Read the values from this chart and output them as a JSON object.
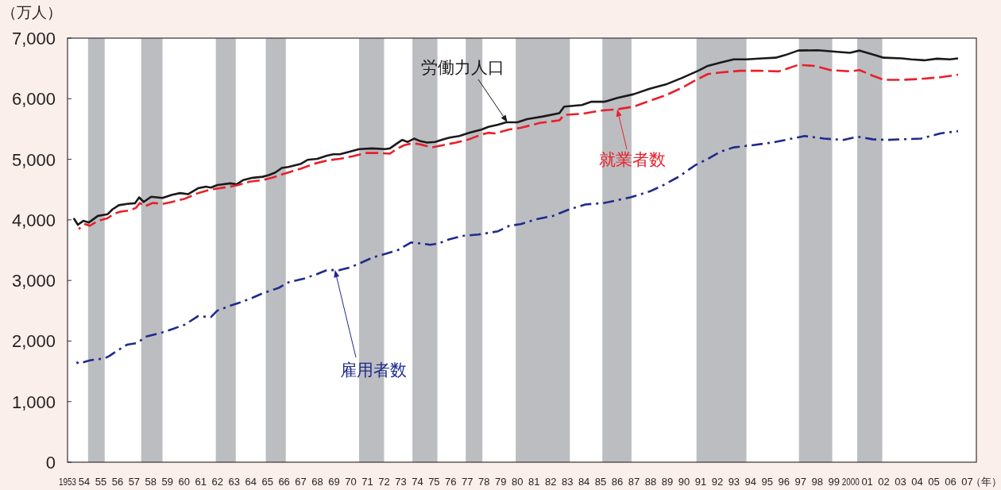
{
  "chart_data": {
    "type": "line",
    "ylabel": "（万人）",
    "xlabel": "（年）",
    "xlim": [
      1953.0,
      2007.55
    ],
    "xticks": [
      1953,
      {
        "value": 1954,
        "label": "54"
      },
      {
        "value": 1955,
        "label": "55"
      },
      {
        "value": 1956,
        "label": "56"
      },
      {
        "value": 1957,
        "label": "57"
      },
      {
        "value": 1958,
        "label": "58"
      },
      {
        "value": 1959,
        "label": "59"
      },
      {
        "value": 1960,
        "label": "60"
      },
      {
        "value": 1961,
        "label": "61"
      },
      {
        "value": 1962,
        "label": "62"
      },
      {
        "value": 1963,
        "label": "63"
      },
      {
        "value": 1964,
        "label": "64"
      },
      {
        "value": 1965,
        "label": "65"
      },
      {
        "value": 1966,
        "label": "66"
      },
      {
        "value": 1967,
        "label": "67"
      },
      {
        "value": 1968,
        "label": "68"
      },
      {
        "value": 1969,
        "label": "69"
      },
      {
        "value": 1970,
        "label": "70"
      },
      {
        "value": 1971,
        "label": "71"
      },
      {
        "value": 1972,
        "label": "72"
      },
      {
        "value": 1973,
        "label": "73"
      },
      {
        "value": 1974,
        "label": "74"
      },
      {
        "value": 1975,
        "label": "75"
      },
      {
        "value": 1976,
        "label": "76"
      },
      {
        "value": 1977,
        "label": "77"
      },
      {
        "value": 1978,
        "label": "78"
      },
      {
        "value": 1979,
        "label": "79"
      },
      {
        "value": 1980,
        "label": "80"
      },
      {
        "value": 1981,
        "label": "81"
      },
      {
        "value": 1982,
        "label": "82"
      },
      {
        "value": 1983,
        "label": "83"
      },
      {
        "value": 1984,
        "label": "84"
      },
      {
        "value": 1985,
        "label": "85"
      },
      {
        "value": 1986,
        "label": "86"
      },
      {
        "value": 1987,
        "label": "87"
      },
      {
        "value": 1988,
        "label": "88"
      },
      {
        "value": 1989,
        "label": "89"
      },
      {
        "value": 1990,
        "label": "90"
      },
      {
        "value": 1991,
        "label": "91"
      },
      {
        "value": 1992,
        "label": "92"
      },
      {
        "value": 1993,
        "label": "93"
      },
      {
        "value": 1994,
        "label": "94"
      },
      {
        "value": 1995,
        "label": "95"
      },
      {
        "value": 1996,
        "label": "96"
      },
      {
        "value": 1997,
        "label": "97"
      },
      {
        "value": 1998,
        "label": "98"
      },
      {
        "value": 1999,
        "label": "99"
      },
      2000,
      {
        "value": 2001,
        "label": "01"
      },
      {
        "value": 2002,
        "label": "02"
      },
      {
        "value": 2003,
        "label": "03"
      },
      {
        "value": 2004,
        "label": "04"
      },
      {
        "value": 2005,
        "label": "05"
      },
      {
        "value": 2006,
        "label": "06"
      },
      {
        "value": 2007,
        "label": "07"
      }
    ],
    "ylim": [
      0,
      7000
    ],
    "yticks": [
      0,
      {
        "value": 1000,
        "label": "1,000"
      },
      {
        "value": 2000,
        "label": "2,000"
      },
      {
        "value": 3000,
        "label": "3,000"
      },
      {
        "value": 4000,
        "label": "4,000"
      },
      {
        "value": 5000,
        "label": "5,000"
      },
      {
        "value": 6000,
        "label": "6,000"
      },
      {
        "value": 7000,
        "label": "7,000"
      }
    ],
    "bands": [
      {
        "axis": "x",
        "from": 1954.23,
        "to": 1955.23,
        "color": "#bcbdc1"
      },
      {
        "axis": "x",
        "from": 1957.42,
        "to": 1958.7,
        "color": "#bcbdc1"
      },
      {
        "axis": "x",
        "from": 1961.9,
        "to": 1963.1,
        "color": "#bcbdc1"
      },
      {
        "axis": "x",
        "from": 1964.9,
        "to": 1966.1,
        "color": "#bcbdc1"
      },
      {
        "axis": "x",
        "from": 1970.5,
        "to": 1972.0,
        "color": "#bcbdc1"
      },
      {
        "axis": "x",
        "from": 1973.7,
        "to": 1975.2,
        "color": "#bcbdc1"
      },
      {
        "axis": "x",
        "from": 1976.9,
        "to": 1977.9,
        "color": "#bcbdc1"
      },
      {
        "axis": "x",
        "from": 1979.9,
        "to": 1983.15,
        "color": "#bcbdc1"
      },
      {
        "axis": "x",
        "from": 1985.1,
        "to": 1986.85,
        "color": "#bcbdc1"
      },
      {
        "axis": "x",
        "from": 1990.75,
        "to": 1993.75,
        "color": "#bcbdc1"
      },
      {
        "axis": "x",
        "from": 1996.9,
        "to": 1998.9,
        "color": "#bcbdc1"
      },
      {
        "axis": "x",
        "from": 2000.4,
        "to": 2001.9,
        "color": "#bcbdc1"
      }
    ],
    "series": [
      {
        "name": "労働力人口",
        "color": "#1a1a1a",
        "line_style": "solid",
        "x": [
          1953.37,
          1953.62,
          1953.95,
          1954.28,
          1954.82,
          1955.4,
          1955.69,
          1956.08,
          1956.57,
          1957.05,
          1957.3,
          1957.57,
          1958.02,
          1958.7,
          1959.28,
          1959.76,
          1960.25,
          1960.83,
          1961.31,
          1961.6,
          1961.99,
          1962.76,
          1963.15,
          1963.54,
          1964.12,
          1964.7,
          1965.08,
          1965.47,
          1965.86,
          1966.25,
          1967.02,
          1967.41,
          1967.99,
          1968.57,
          1968.96,
          1969.34,
          1969.93,
          1970.51,
          1971.28,
          1972.06,
          1972.35,
          1972.74,
          1973.09,
          1973.42,
          1973.8,
          1974.19,
          1974.58,
          1975.06,
          1975.55,
          1975.93,
          1976.52,
          1977.1,
          1977.87,
          1978.26,
          1978.84,
          1979.33,
          1980.0,
          1980.58,
          1981.55,
          1982.52,
          1982.81,
          1983.87,
          1984.45,
          1985.23,
          1986.01,
          1986.98,
          1987.94,
          1988.91,
          1989.88,
          1990.85,
          1991.43,
          1992.2,
          1992.98,
          1993.76,
          1994.72,
          1995.5,
          1996.08,
          1996.86,
          1998.02,
          1999.18,
          1999.96,
          2000.54,
          2001.32,
          2001.99,
          2003.06,
          2003.64,
          2004.42,
          2005.19,
          2005.97,
          2006.45
        ],
        "values": [
          4027,
          3919,
          3984,
          3957,
          4065,
          4092,
          4172,
          4242,
          4264,
          4275,
          4372,
          4296,
          4382,
          4361,
          4415,
          4442,
          4425,
          4522,
          4549,
          4533,
          4576,
          4603,
          4587,
          4657,
          4695,
          4711,
          4738,
          4781,
          4856,
          4873,
          4926,
          4991,
          5007,
          5061,
          5083,
          5083,
          5126,
          5169,
          5180,
          5169,
          5180,
          5255,
          5320,
          5287,
          5341,
          5298,
          5277,
          5287,
          5330,
          5357,
          5384,
          5438,
          5492,
          5535,
          5572,
          5610,
          5610,
          5663,
          5707,
          5761,
          5869,
          5896,
          5950,
          5950,
          6014,
          6074,
          6165,
          6235,
          6343,
          6461,
          6542,
          6596,
          6650,
          6650,
          6666,
          6677,
          6720,
          6795,
          6801,
          6774,
          6758,
          6795,
          6731,
          6677,
          6666,
          6650,
          6634,
          6661,
          6650,
          6666
        ]
      },
      {
        "name": "就業者数",
        "color": "#e8202a",
        "line_style": "dashed",
        "x": [
          1953.67,
          1954.06,
          1954.34,
          1954.82,
          1955.4,
          1955.79,
          1956.18,
          1956.76,
          1957.11,
          1957.34,
          1957.63,
          1958.12,
          1958.7,
          1959.28,
          1960.05,
          1960.83,
          1961.6,
          1962.76,
          1963.25,
          1963.92,
          1964.7,
          1965.28,
          1966.05,
          1967.02,
          1967.79,
          1968.57,
          1969.34,
          1970.12,
          1970.89,
          1971.66,
          1972.35,
          1972.74,
          1973.22,
          1973.71,
          1974.19,
          1974.87,
          1975.55,
          1976.32,
          1977.1,
          1977.87,
          1978.26,
          1978.65,
          1979.52,
          1980.19,
          1981.35,
          1982.52,
          1982.81,
          1983.87,
          1985.03,
          1986.01,
          1986.98,
          1987.94,
          1988.91,
          1989.88,
          1990.66,
          1991.43,
          1992.2,
          1993.36,
          1994.53,
          1995.69,
          1996.86,
          1997.83,
          1998.79,
          1999.96,
          2000.54,
          2001.32,
          2001.99,
          2003.06,
          2004.22,
          2005.39,
          2006.45
        ],
        "values": [
          3849,
          3930,
          3903,
          3984,
          4027,
          4102,
          4135,
          4156,
          4199,
          4280,
          4221,
          4280,
          4264,
          4296,
          4350,
          4442,
          4501,
          4549,
          4576,
          4630,
          4657,
          4695,
          4765,
          4846,
          4926,
          4980,
          5007,
          5050,
          5104,
          5104,
          5093,
          5169,
          5234,
          5266,
          5245,
          5196,
          5234,
          5277,
          5330,
          5411,
          5438,
          5427,
          5492,
          5519,
          5600,
          5643,
          5734,
          5750,
          5804,
          5826,
          5869,
          5966,
          6057,
          6181,
          6300,
          6407,
          6434,
          6461,
          6461,
          6451,
          6558,
          6542,
          6472,
          6451,
          6472,
          6381,
          6311,
          6311,
          6327,
          6354,
          6397
        ]
      },
      {
        "name": "雇用者数",
        "color": "#1f2a8c",
        "line_style": "dashdot",
        "x": [
          1953.37,
          1953.67,
          1954.34,
          1955.22,
          1955.5,
          1956.0,
          1956.57,
          1957.15,
          1957.73,
          1958.7,
          1959.28,
          1960.05,
          1960.83,
          1961.6,
          1961.99,
          1962.76,
          1963.34,
          1964.12,
          1964.7,
          1965.67,
          1966.25,
          1967.21,
          1967.99,
          1968.57,
          1969.34,
          1969.93,
          1970.51,
          1971.28,
          1972.06,
          1972.84,
          1973.61,
          1974.19,
          1974.77,
          1975.26,
          1975.93,
          1976.71,
          1977.68,
          1978.84,
          1979.52,
          1980.19,
          1981.16,
          1982.13,
          1983.1,
          1984.07,
          1985.23,
          1986.78,
          1987.94,
          1988.71,
          1989.68,
          1990.66,
          1991.43,
          1992.2,
          1992.98,
          1994.14,
          1995.31,
          1996.47,
          1997.24,
          1998.41,
          1999.57,
          2000.44,
          2001.32,
          2002.19,
          2003.06,
          2004.22,
          2005.39,
          2006.45
        ],
        "values": [
          1682,
          1629,
          1682,
          1714,
          1752,
          1843,
          1939,
          1966,
          2073,
          2143,
          2196,
          2271,
          2411,
          2395,
          2502,
          2582,
          2636,
          2716,
          2786,
          2877,
          2968,
          3032,
          3107,
          3171,
          3171,
          3214,
          3278,
          3375,
          3439,
          3503,
          3627,
          3611,
          3589,
          3611,
          3680,
          3736,
          3758,
          3812,
          3903,
          3930,
          4011,
          4065,
          4172,
          4253,
          4280,
          4372,
          4469,
          4566,
          4711,
          4900,
          5007,
          5126,
          5196,
          5234,
          5277,
          5341,
          5384,
          5341,
          5320,
          5373,
          5330,
          5320,
          5330,
          5341,
          5427,
          5465
        ]
      }
    ]
  }
}
